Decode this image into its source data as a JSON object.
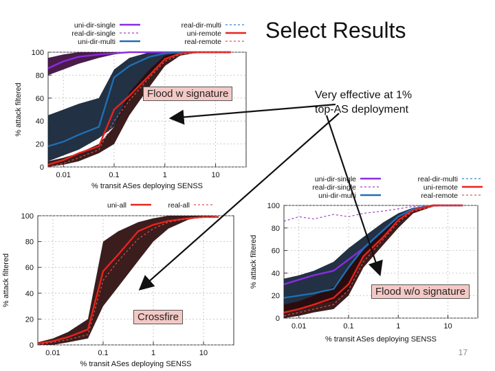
{
  "slide": {
    "title": "Select Results",
    "note_line1": "Very effective at 1%",
    "note_line2": "top-AS deployment",
    "label_flood_sig": "Flood w signature",
    "label_flood_nosig": "Flood w/o signature",
    "label_crossfire": "Crossfire",
    "page_number": "17"
  },
  "colors": {
    "uni_single": "#8a2be2",
    "real_single": "#a040c0",
    "uni_multi": "#1f6fb5",
    "real_multi": "#3b7fc4",
    "uni_remote": "#e8231c",
    "real_remote": "#e05050",
    "band_dir": "#0f1f33",
    "band_remote": "#2a0a0a",
    "band_single": "#3a0a3a"
  },
  "chart_data": [
    {
      "id": "top-left",
      "type": "line",
      "title": "",
      "xlabel": "% transit ASes deploying SENSS",
      "ylabel": "% attack filtered",
      "xscale": "log",
      "xlim": [
        0.005,
        40
      ],
      "ylim": [
        0,
        100
      ],
      "xticks": [
        0.01,
        0.1,
        1,
        10
      ],
      "xtick_labels": [
        "0.01",
        "0.1",
        "1",
        "10"
      ],
      "yticks": [
        0,
        20,
        40,
        60,
        80,
        100
      ],
      "ytick_labels": [
        "0",
        "20",
        "40",
        "60",
        "80",
        "100"
      ],
      "legend": [
        {
          "name": "uni-dir-single",
          "style": "solid",
          "color": "#8a2be2"
        },
        {
          "name": "real-dir-single",
          "style": "dashed",
          "color": "#a040c0"
        },
        {
          "name": "uni-dir-multi",
          "style": "solid",
          "color": "#1f6fb5"
        },
        {
          "name": "real-dir-multi",
          "style": "dashed",
          "color": "#3b7fc4"
        },
        {
          "name": "uni-remote",
          "style": "solid",
          "color": "#e8231c"
        },
        {
          "name": "real-remote",
          "style": "dashed",
          "color": "#e05050"
        }
      ],
      "x": [
        0.005,
        0.01,
        0.02,
        0.05,
        0.1,
        0.2,
        0.5,
        1,
        2,
        5,
        10,
        20
      ],
      "bands": [
        {
          "color": "#3a0a3a",
          "low": [
            80,
            85,
            90,
            95,
            98,
            100,
            100,
            100,
            100,
            100,
            100,
            100
          ],
          "high": [
            95,
            98,
            100,
            100,
            100,
            100,
            100,
            100,
            100,
            100,
            100,
            100
          ]
        },
        {
          "color": "#0f1f33",
          "low": [
            5,
            10,
            15,
            25,
            35,
            60,
            80,
            95,
            99,
            100,
            100,
            100
          ],
          "high": [
            45,
            50,
            55,
            60,
            85,
            95,
            100,
            100,
            100,
            100,
            100,
            100
          ]
        },
        {
          "color": "#2a0a0a",
          "low": [
            0,
            2,
            5,
            12,
            20,
            45,
            70,
            88,
            97,
            100,
            100,
            100
          ],
          "high": [
            5,
            8,
            12,
            20,
            35,
            65,
            85,
            97,
            100,
            100,
            100,
            100
          ]
        }
      ],
      "series": [
        {
          "name": "uni-dir-single",
          "color": "#8a2be2",
          "style": "solid",
          "values": [
            86,
            92,
            96,
            98,
            99,
            100,
            100,
            100,
            100,
            100,
            100,
            100
          ]
        },
        {
          "name": "uni-dir-multi",
          "color": "#1f6fb5",
          "style": "solid",
          "values": [
            18,
            22,
            28,
            35,
            78,
            88,
            96,
            99,
            100,
            100,
            100,
            100
          ]
        },
        {
          "name": "uni-remote",
          "color": "#e8231c",
          "style": "solid",
          "values": [
            2,
            6,
            12,
            18,
            50,
            62,
            80,
            94,
            99,
            100,
            100,
            100
          ]
        },
        {
          "name": "real-remote",
          "color": "#e05050",
          "style": "dashed",
          "values": [
            0,
            3,
            8,
            15,
            40,
            58,
            78,
            92,
            98,
            100,
            100,
            100
          ]
        }
      ]
    },
    {
      "id": "bottom-left",
      "type": "line",
      "title": "",
      "xlabel": "% transit ASes deploying SENSS",
      "ylabel": "% attack filtered",
      "xscale": "log",
      "xlim": [
        0.005,
        40
      ],
      "ylim": [
        0,
        100
      ],
      "xticks": [
        0.01,
        0.1,
        1,
        10
      ],
      "xtick_labels": [
        "0.01",
        "0.1",
        "1",
        "10"
      ],
      "yticks": [
        0,
        20,
        40,
        60,
        80,
        100
      ],
      "ytick_labels": [
        "0",
        "20",
        "40",
        "60",
        "80",
        "100"
      ],
      "legend": [
        {
          "name": "uni-all",
          "style": "solid",
          "color": "#e8231c"
        },
        {
          "name": "real-all",
          "style": "dashed",
          "color": "#e05050"
        }
      ],
      "x": [
        0.005,
        0.01,
        0.02,
        0.05,
        0.1,
        0.2,
        0.5,
        1,
        2,
        5,
        10,
        20
      ],
      "bands": [
        {
          "color": "#2a0a0a",
          "low": [
            0,
            0,
            2,
            5,
            30,
            45,
            65,
            80,
            90,
            97,
            99,
            100
          ],
          "high": [
            2,
            5,
            10,
            20,
            80,
            88,
            95,
            98,
            100,
            100,
            100,
            100
          ]
        }
      ],
      "series": [
        {
          "name": "uni-all",
          "color": "#e8231c",
          "style": "solid",
          "values": [
            1,
            3,
            6,
            12,
            57,
            70,
            88,
            93,
            96,
            98,
            99,
            99
          ]
        },
        {
          "name": "real-all",
          "color": "#e05050",
          "style": "dashed",
          "values": [
            0,
            2,
            4,
            8,
            50,
            65,
            82,
            90,
            95,
            98,
            99,
            99
          ]
        }
      ]
    },
    {
      "id": "bottom-right",
      "type": "line",
      "title": "",
      "xlabel": "% transit ASes deploying SENSS",
      "ylabel": "% attack filtered",
      "xscale": "log",
      "xlim": [
        0.005,
        40
      ],
      "ylim": [
        0,
        100
      ],
      "xticks": [
        0.01,
        0.1,
        1,
        10
      ],
      "xtick_labels": [
        "0.01",
        "0.1",
        "1",
        "10"
      ],
      "yticks": [
        0,
        20,
        40,
        60,
        80,
        100
      ],
      "ytick_labels": [
        "0",
        "20",
        "40",
        "60",
        "80",
        "100"
      ],
      "legend": [
        {
          "name": "uni-dir-single",
          "style": "solid",
          "color": "#8a2be2"
        },
        {
          "name": "real-dir-single",
          "style": "dashed",
          "color": "#a040c0"
        },
        {
          "name": "uni-dir-multi",
          "style": "solid",
          "color": "#1f6fb5"
        },
        {
          "name": "real-dir-multi",
          "style": "dashed",
          "color": "#3b7fc4"
        },
        {
          "name": "uni-remote",
          "style": "solid",
          "color": "#e8231c"
        },
        {
          "name": "real-remote",
          "style": "dashed",
          "color": "#e05050"
        }
      ],
      "x": [
        0.005,
        0.01,
        0.02,
        0.05,
        0.1,
        0.2,
        0.5,
        1,
        2,
        5,
        10,
        20
      ],
      "bands": [
        {
          "color": "#0f1f33",
          "low": [
            5,
            8,
            12,
            15,
            25,
            55,
            72,
            85,
            95,
            99,
            100,
            100
          ],
          "high": [
            35,
            38,
            42,
            50,
            62,
            72,
            85,
            93,
            98,
            100,
            100,
            100
          ]
        },
        {
          "color": "#2a0a0a",
          "low": [
            0,
            2,
            5,
            8,
            20,
            45,
            65,
            80,
            93,
            99,
            100,
            100
          ],
          "high": [
            12,
            15,
            20,
            28,
            45,
            60,
            78,
            90,
            97,
            100,
            100,
            100
          ]
        }
      ],
      "series": [
        {
          "name": "real-dir-single",
          "color": "#a040c0",
          "style": "dashed",
          "values": [
            86,
            90,
            88,
            92,
            90,
            93,
            95,
            97,
            99,
            100,
            100,
            100
          ]
        },
        {
          "name": "uni-dir-single",
          "color": "#8a2be2",
          "style": "solid",
          "values": [
            30,
            34,
            38,
            42,
            52,
            62,
            78,
            90,
            97,
            100,
            100,
            100
          ]
        },
        {
          "name": "uni-dir-multi",
          "color": "#1f6fb5",
          "style": "solid",
          "values": [
            18,
            20,
            22,
            26,
            45,
            62,
            78,
            90,
            97,
            100,
            100,
            100
          ]
        },
        {
          "name": "uni-remote",
          "color": "#e8231c",
          "style": "solid",
          "values": [
            5,
            8,
            12,
            18,
            30,
            55,
            72,
            87,
            96,
            100,
            100,
            100
          ]
        },
        {
          "name": "real-remote",
          "color": "#e05050",
          "style": "dashed",
          "values": [
            2,
            5,
            8,
            12,
            25,
            50,
            70,
            85,
            95,
            99,
            100,
            100
          ]
        }
      ]
    }
  ]
}
